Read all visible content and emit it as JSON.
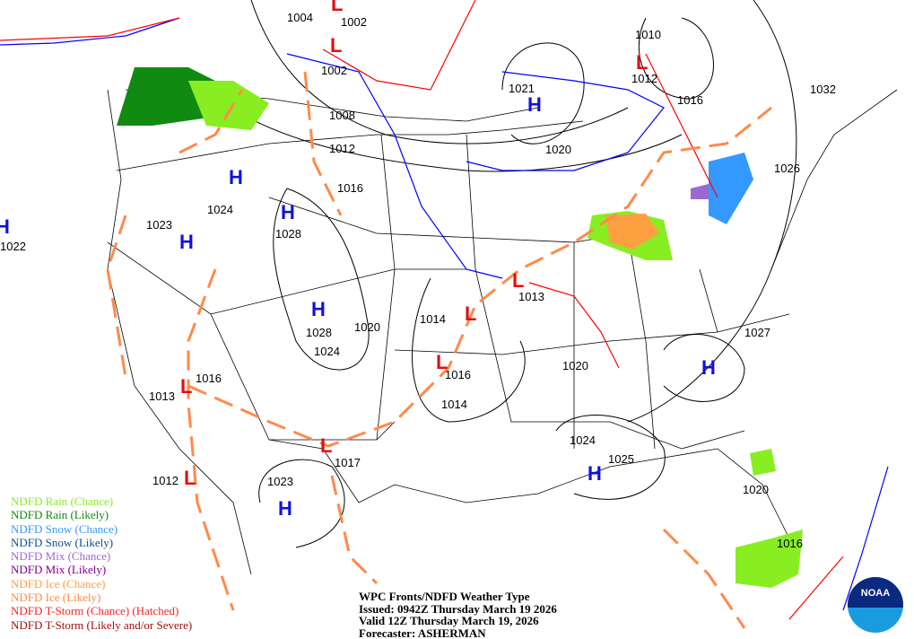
{
  "title": "WPC Fronts/NDFD Weather Type",
  "issued": "Issued: 0942Z Thursday March 19 2026",
  "valid": "Valid 12Z Thursday March 19, 2026",
  "forecaster": "Forecaster: ASHERMAN",
  "logo_text": "NOAA",
  "legend": [
    {
      "label": "NDFD Rain (Chance)",
      "color": "#88ee22"
    },
    {
      "label": "NDFD Rain (Likely)",
      "color": "#108a10"
    },
    {
      "label": "NDFD Snow (Chance)",
      "color": "#3399ff"
    },
    {
      "label": "NDFD Snow (Likely)",
      "color": "#124d8c"
    },
    {
      "label": "NDFD Mix (Chance)",
      "color": "#9a6ad0"
    },
    {
      "label": "NDFD Mix (Likely)",
      "color": "#800090"
    },
    {
      "label": "NDFD Ice (Chance)",
      "color": "#ffa040"
    },
    {
      "label": "NDFD Ice (Likely)",
      "color": "#ff8a4a"
    },
    {
      "label": "NDFD T-Storm (Chance) (Hatched)",
      "color": "#ff2222"
    },
    {
      "label": "NDFD T-Storm (Likely and/or Severe)",
      "color": "#a01010"
    }
  ],
  "isobar_labels": [
    "1004",
    "1002",
    "1002",
    "1010",
    "1012",
    "1016",
    "1032",
    "1021",
    "1008",
    "1012",
    "1020",
    "1016",
    "1026",
    "1024",
    "1023",
    "1028",
    "1022",
    "1013",
    "1014",
    "1028",
    "1020",
    "1024",
    "1016",
    "1013",
    "1016",
    "1014",
    "1020",
    "1027",
    "1012",
    "1017",
    "1023",
    "1024",
    "1025",
    "1020",
    "1016"
  ],
  "high_label": "H",
  "low_label": "L",
  "high_count": 9,
  "low_count": 9
}
